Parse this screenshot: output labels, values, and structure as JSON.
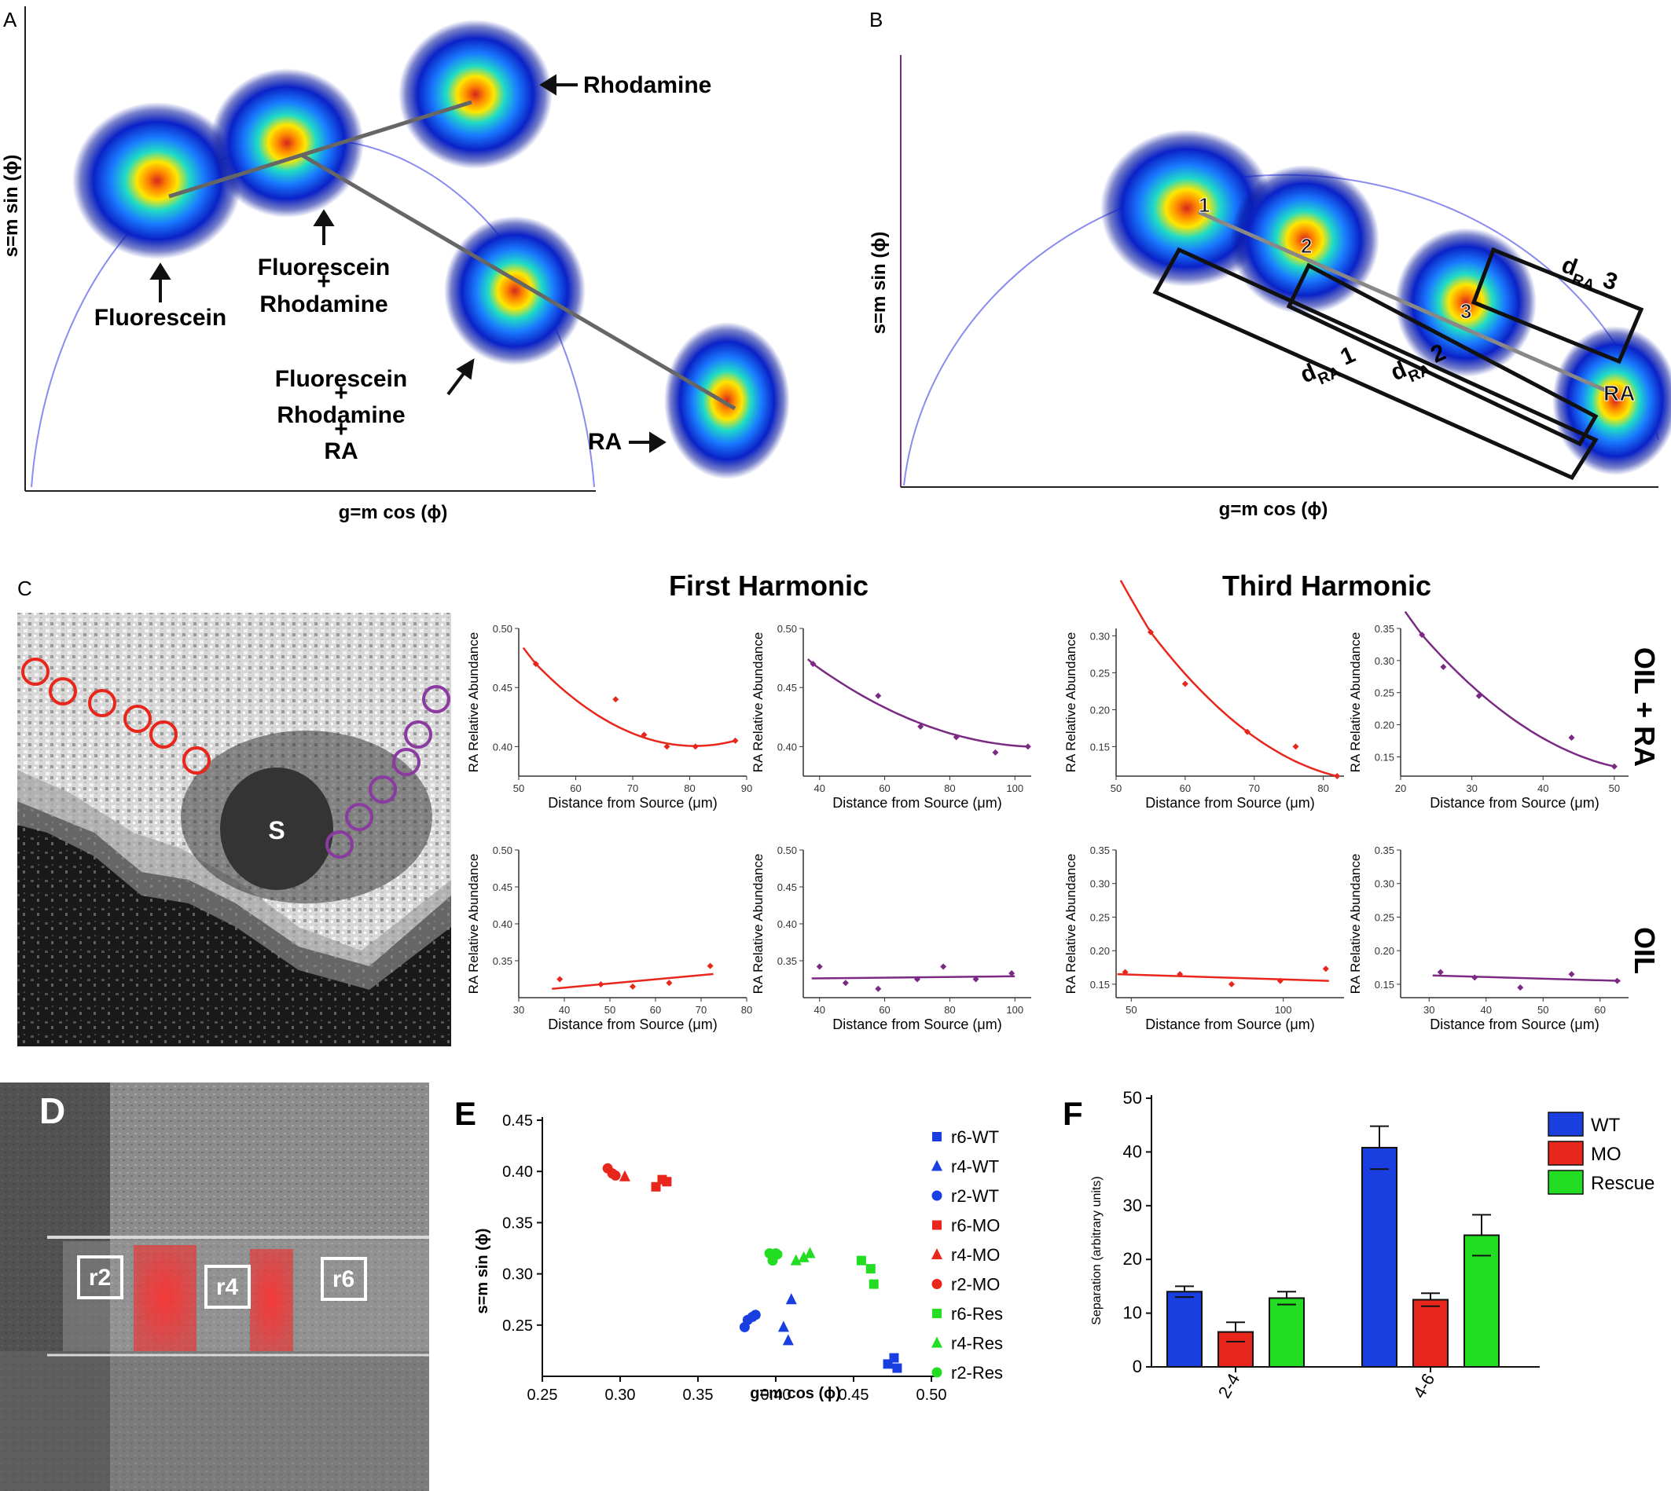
{
  "panels": {
    "A": {
      "letter": "A",
      "xlabel": "g=m cos (ϕ)",
      "ylabel": "s=m sin (ϕ)",
      "clusters": [
        {
          "label": "Fluorescein"
        },
        {
          "label_lines": [
            "Fluorescein",
            "+",
            "Rhodamine"
          ]
        },
        {
          "label": "Rhodamine"
        },
        {
          "label_lines": [
            "Fluorescein",
            "+",
            "Rhodamine",
            "+",
            "RA"
          ]
        },
        {
          "label": "RA"
        }
      ]
    },
    "B": {
      "letter": "B",
      "xlabel": "g=m cos (ϕ)",
      "ylabel": "s=m sin (ϕ)",
      "points": [
        "1",
        "2",
        "3",
        "RA"
      ],
      "distances": [
        {
          "base": "d",
          "sub": "RA",
          "idx": "1"
        },
        {
          "base": "d",
          "sub": "RA",
          "idx": "2"
        },
        {
          "base": "d",
          "sub": "RA",
          "idx": "3"
        }
      ]
    },
    "C": {
      "letter": "C",
      "source_label": "S",
      "col_headers": [
        "First Harmonic",
        "Third Harmonic"
      ],
      "row_labels": [
        "OIL + RA",
        "OIL"
      ],
      "ylabel": "RA Relative Abundance",
      "xlabel": "Distance from  Source (μm)",
      "plots": [
        {
          "row": 0,
          "color": "#e8261c",
          "xlim": [
            50,
            90
          ],
          "xticks": [
            50,
            60,
            70,
            80,
            90
          ],
          "ylim": [
            0.375,
            0.5
          ],
          "yticks": [
            0.4,
            0.45,
            0.5
          ],
          "x": [
            53,
            67,
            72,
            76,
            81,
            88
          ],
          "y": [
            0.47,
            0.44,
            0.41,
            0.4,
            0.4,
            0.405
          ],
          "fit": "exp"
        },
        {
          "row": 0,
          "color": "#7b2a84",
          "xlim": [
            35,
            105
          ],
          "xticks": [
            40,
            60,
            80,
            100
          ],
          "ylim": [
            0.375,
            0.5
          ],
          "yticks": [
            0.4,
            0.45,
            0.5
          ],
          "x": [
            38,
            58,
            71,
            82,
            94,
            104
          ],
          "y": [
            0.47,
            0.443,
            0.417,
            0.408,
            0.395,
            0.4
          ],
          "fit": "exp"
        },
        {
          "row": 0,
          "color": "#e8261c",
          "xlim": [
            50,
            83
          ],
          "xticks": [
            50,
            60,
            70,
            80
          ],
          "ylim": [
            0.11,
            0.31
          ],
          "yticks": [
            0.15,
            0.2,
            0.25,
            0.3
          ],
          "x": [
            55,
            60,
            69,
            76,
            82
          ],
          "y": [
            0.305,
            0.235,
            0.17,
            0.15,
            0.11
          ],
          "fit": "exp"
        },
        {
          "row": 0,
          "color": "#7b2a84",
          "xlim": [
            20,
            52
          ],
          "xticks": [
            20,
            30,
            40,
            50
          ],
          "ylim": [
            0.12,
            0.35
          ],
          "yticks": [
            0.15,
            0.2,
            0.25,
            0.3,
            0.35
          ],
          "x": [
            23,
            26,
            31,
            44,
            50
          ],
          "y": [
            0.34,
            0.29,
            0.245,
            0.18,
            0.135
          ],
          "fit": "exp"
        },
        {
          "row": 1,
          "color": "#e8261c",
          "xlim": [
            30,
            80
          ],
          "xticks": [
            30,
            40,
            50,
            60,
            70,
            80
          ],
          "ylim": [
            0.3,
            0.5
          ],
          "yticks": [
            0.35,
            0.4,
            0.45,
            0.5
          ],
          "x": [
            39,
            48,
            55,
            63,
            72
          ],
          "y": [
            0.325,
            0.318,
            0.315,
            0.32,
            0.343
          ],
          "fit": "lin",
          "fit_line": [
            0.312,
            0.332
          ]
        },
        {
          "row": 1,
          "color": "#7b2a84",
          "xlim": [
            35,
            105
          ],
          "xticks": [
            40,
            60,
            80,
            100
          ],
          "ylim": [
            0.3,
            0.5
          ],
          "yticks": [
            0.35,
            0.4,
            0.45,
            0.5
          ],
          "x": [
            40,
            48,
            58,
            70,
            78,
            88,
            99
          ],
          "y": [
            0.342,
            0.32,
            0.312,
            0.325,
            0.342,
            0.325,
            0.333
          ],
          "fit": "lin",
          "fit_line": [
            0.326,
            0.329
          ]
        },
        {
          "row": 1,
          "color": "#e8261c",
          "xlim": [
            45,
            120
          ],
          "xticks": [
            50,
            100
          ],
          "ylim": [
            0.13,
            0.35
          ],
          "yticks": [
            0.15,
            0.2,
            0.25,
            0.3,
            0.35
          ],
          "x": [
            48,
            66,
            83,
            99,
            114
          ],
          "y": [
            0.168,
            0.165,
            0.15,
            0.155,
            0.173
          ],
          "fit": "lin",
          "fit_line": [
            0.165,
            0.155
          ]
        },
        {
          "row": 1,
          "color": "#7b2a84",
          "xlim": [
            25,
            65
          ],
          "xticks": [
            30,
            40,
            50,
            60
          ],
          "ylim": [
            0.13,
            0.35
          ],
          "yticks": [
            0.15,
            0.2,
            0.25,
            0.3,
            0.35
          ],
          "x": [
            32,
            38,
            46,
            55,
            63
          ],
          "y": [
            0.168,
            0.16,
            0.145,
            0.165,
            0.155
          ],
          "fit": "lin",
          "fit_line": [
            0.163,
            0.155
          ]
        }
      ]
    },
    "D": {
      "letter": "D",
      "regions": [
        "r2",
        "r4",
        "r6"
      ]
    },
    "E": {
      "letter": "E",
      "xlabel": "g=m cos (ϕ)",
      "ylabel": "s=m sin (ϕ)",
      "xlim": [
        0.25,
        0.5
      ],
      "ylim": [
        0.2,
        0.45
      ],
      "xticks": [
        "0.25",
        "0.30",
        "0.35",
        "0.40",
        "0.45",
        "0.50"
      ],
      "yticks": [
        "0.25",
        "0.30",
        "0.35",
        "0.40",
        "0.45"
      ]
    },
    "F": {
      "letter": "F",
      "ylabel": "Separation (arbitrary units)",
      "ylim": [
        0,
        50
      ],
      "yticks": [
        "0",
        "10",
        "20",
        "30",
        "40",
        "50"
      ]
    }
  },
  "chart_data": [
    {
      "type": "scatter",
      "panel": "E",
      "xlabel": "g=m cos (ϕ)",
      "ylabel": "s=m sin (ϕ)",
      "xlim": [
        0.25,
        0.5
      ],
      "ylim": [
        0.2,
        0.45
      ],
      "legend_placement": "right",
      "series": [
        {
          "name": "r6-WT",
          "color": "#1a3fe0",
          "marker": "square",
          "x": [
            0.472,
            0.476,
            0.478
          ],
          "y": [
            0.212,
            0.218,
            0.208
          ]
        },
        {
          "name": "r4-WT",
          "color": "#1a3fe0",
          "marker": "triangle",
          "x": [
            0.405,
            0.408,
            0.41
          ],
          "y": [
            0.248,
            0.235,
            0.275
          ]
        },
        {
          "name": "r2-WT",
          "color": "#1a3fe0",
          "marker": "circle",
          "x": [
            0.38,
            0.382,
            0.385,
            0.387
          ],
          "y": [
            0.248,
            0.255,
            0.258,
            0.26
          ]
        },
        {
          "name": "r6-MO",
          "color": "#e8261c",
          "marker": "square",
          "x": [
            0.323,
            0.327,
            0.33
          ],
          "y": [
            0.385,
            0.392,
            0.39
          ]
        },
        {
          "name": "r4-MO",
          "color": "#e8261c",
          "marker": "triangle",
          "x": [
            0.303
          ],
          "y": [
            0.395
          ]
        },
        {
          "name": "r2-MO",
          "color": "#e8261c",
          "marker": "circle",
          "x": [
            0.292,
            0.295,
            0.297
          ],
          "y": [
            0.403,
            0.398,
            0.396
          ]
        },
        {
          "name": "r6-Res",
          "color": "#22dd22",
          "marker": "square",
          "x": [
            0.455,
            0.461,
            0.463
          ],
          "y": [
            0.313,
            0.305,
            0.29
          ]
        },
        {
          "name": "r4-Res",
          "color": "#22dd22",
          "marker": "triangle",
          "x": [
            0.413,
            0.418,
            0.422
          ],
          "y": [
            0.313,
            0.316,
            0.32
          ]
        },
        {
          "name": "r2-Res",
          "color": "#22dd22",
          "marker": "circle",
          "x": [
            0.396,
            0.398,
            0.4,
            0.401
          ],
          "y": [
            0.32,
            0.313,
            0.32,
            0.319
          ]
        }
      ]
    },
    {
      "type": "bar",
      "panel": "F",
      "categories": [
        "2-4",
        "4-6"
      ],
      "ylabel": "Separation (arbitrary units)",
      "ylim": [
        0,
        50
      ],
      "legend_placement": "top-right",
      "series": [
        {
          "name": "WT",
          "color": "#1a3fe0",
          "values": [
            14,
            40.8
          ],
          "errors": [
            1,
            4
          ]
        },
        {
          "name": "MO",
          "color": "#e8261c",
          "values": [
            6.5,
            12.5
          ],
          "errors": [
            1.8,
            1.2
          ]
        },
        {
          "name": "Rescue",
          "color": "#22dd22",
          "values": [
            12.8,
            24.5
          ],
          "errors": [
            1.2,
            3.8
          ]
        }
      ]
    }
  ]
}
